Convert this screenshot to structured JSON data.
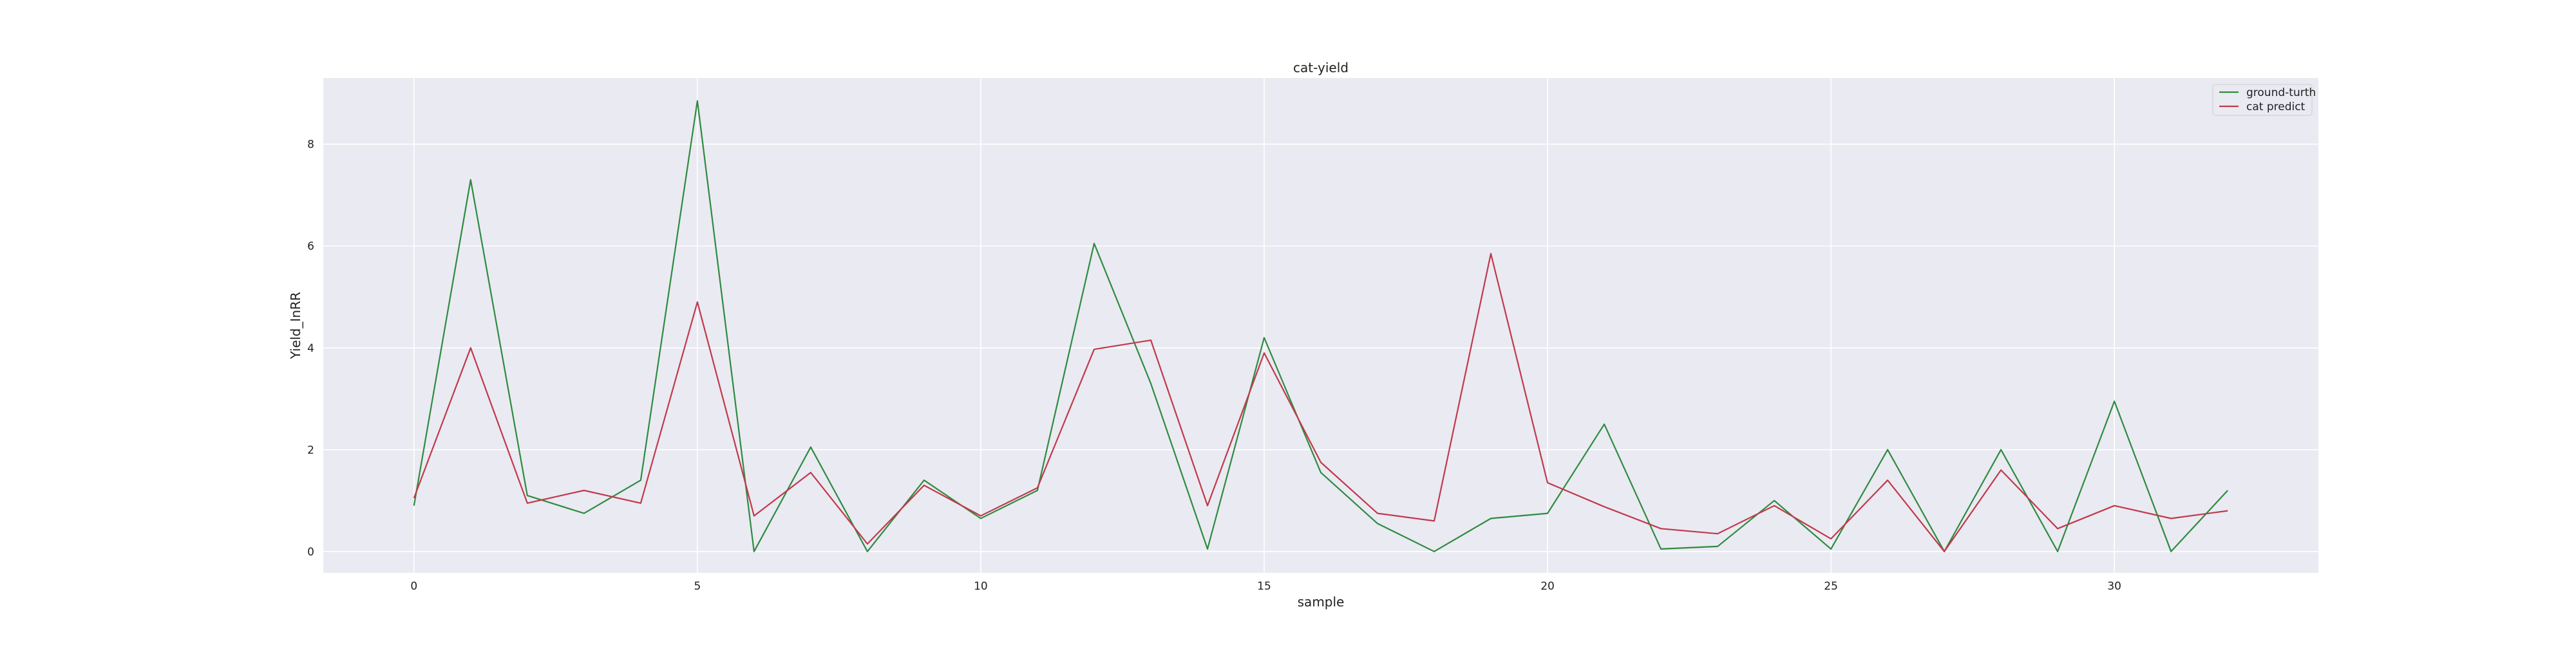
{
  "chart_data": {
    "type": "line",
    "title": "cat-yield",
    "xlabel": "sample",
    "ylabel": "Yield_InRR",
    "xlim": [
      -1.6,
      33.6
    ],
    "ylim": [
      -0.42,
      9.3
    ],
    "xticks": [
      0,
      5,
      10,
      15,
      20,
      25,
      30
    ],
    "yticks": [
      0,
      2,
      4,
      6,
      8
    ],
    "grid": true,
    "legend_position": "top-right",
    "x": [
      0,
      1,
      2,
      3,
      4,
      5,
      6,
      7,
      8,
      9,
      10,
      11,
      12,
      13,
      14,
      15,
      16,
      17,
      18,
      19,
      20,
      21,
      22,
      23,
      24,
      25,
      26,
      27,
      28,
      29,
      30,
      31,
      32
    ],
    "series": [
      {
        "name": "ground-turth",
        "color": "#2e8b3f",
        "values": [
          0.9,
          7.3,
          1.1,
          0.75,
          1.4,
          8.85,
          0.0,
          2.05,
          0.0,
          1.4,
          0.65,
          1.2,
          6.05,
          3.3,
          0.05,
          4.2,
          1.55,
          0.55,
          0.0,
          0.65,
          0.75,
          2.5,
          0.05,
          0.1,
          1.0,
          0.05,
          2.0,
          0.0,
          2.0,
          0.0,
          2.95,
          0.0,
          1.2
        ]
      },
      {
        "name": "cat predict",
        "color": "#c0394b",
        "values": [
          1.05,
          4.0,
          0.95,
          1.2,
          0.95,
          4.9,
          0.7,
          1.55,
          0.15,
          1.3,
          0.7,
          1.25,
          3.97,
          4.15,
          0.9,
          3.9,
          1.75,
          0.75,
          0.6,
          5.85,
          1.35,
          0.88,
          0.45,
          0.35,
          0.9,
          0.25,
          1.4,
          0.0,
          1.6,
          0.45,
          0.9,
          0.65,
          0.8
        ]
      }
    ]
  }
}
